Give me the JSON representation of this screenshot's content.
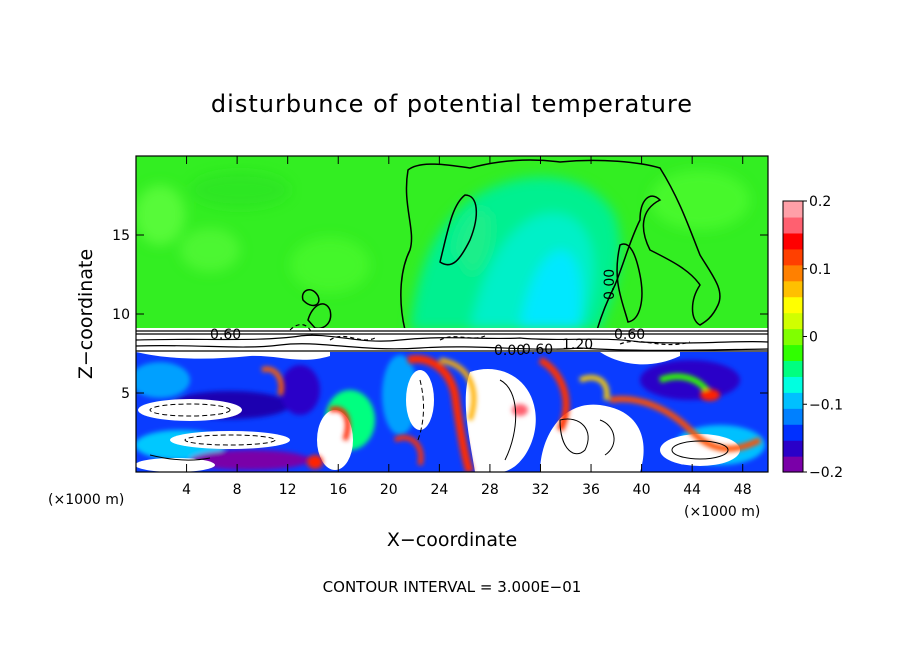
{
  "chart_data": {
    "type": "heatmap",
    "title": "disturbunce of potential temperature",
    "xlabel": "X−coordinate",
    "ylabel": "Z−coordinate",
    "x_unit_left": "(×1000 m)",
    "x_unit_right": "(×1000 m)",
    "xlim": [
      0,
      50
    ],
    "ylim": [
      0,
      20
    ],
    "x_ticks": [
      4,
      8,
      12,
      16,
      20,
      24,
      28,
      32,
      36,
      40,
      44,
      48
    ],
    "y_ticks": [
      5,
      10,
      15
    ],
    "x_tick_labels": [
      "4",
      "8",
      "12",
      "16",
      "20",
      "24",
      "28",
      "32",
      "36",
      "40",
      "44",
      "48"
    ],
    "y_tick_labels": [
      "5",
      "10",
      "15"
    ],
    "colorbar": {
      "range": [
        -0.2,
        0.2
      ],
      "ticks": [
        0.2,
        0.1,
        0,
        -0.1,
        -0.2
      ],
      "tick_labels": [
        "0.2",
        "0.1",
        "0",
        "−0.1",
        "−0.2"
      ],
      "colors": [
        "#7a00a8",
        "#2a00c8",
        "#0030ff",
        "#0080ff",
        "#00c0ff",
        "#00ffe0",
        "#00ff80",
        "#30ff00",
        "#80ff00",
        "#d0ff00",
        "#ffff00",
        "#ffc000",
        "#ff8000",
        "#ff4000",
        "#ff0000",
        "#ff6070",
        "#ffa0a8"
      ]
    },
    "contour_interval_text": "CONTOUR INTERVAL = 3.000E−01",
    "contour_labels": [
      {
        "text": "0.60",
        "x": 7,
        "z": 8.8
      },
      {
        "text": "0.00",
        "x": 37.8,
        "z": 12.2
      },
      {
        "text": "0.60",
        "x": 39,
        "z": 8.8
      },
      {
        "text": "1.20",
        "x": 35.5,
        "z": 8.2
      },
      {
        "text": "0.60",
        "x": 32,
        "z": 8.0
      },
      {
        "text": "0.00",
        "x": 29,
        "z": 7.9
      }
    ]
  },
  "colors": {
    "upper_field": "#33ee22",
    "upper_field_light": "#55ff33",
    "plume": "#00f0c8",
    "plume_core": "#00e8ff",
    "inversion_band": "#ffffff"
  }
}
